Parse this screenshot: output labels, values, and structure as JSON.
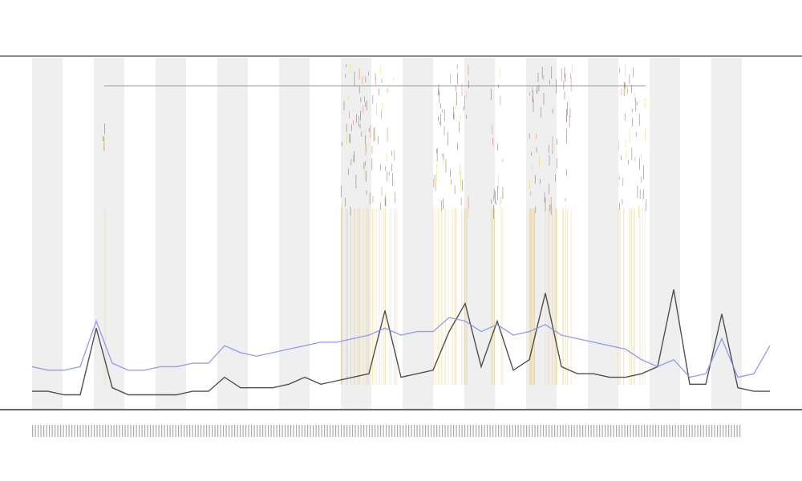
{
  "chart_data": {
    "type": "line",
    "ylim": [
      0,
      100
    ],
    "series": [
      {
        "color": "#333333",
        "values": [
          5,
          5,
          4,
          4,
          23,
          6,
          4,
          4,
          4,
          4,
          5,
          5,
          9,
          6,
          6,
          6,
          7,
          9,
          7,
          8,
          9,
          10,
          28,
          9,
          10,
          11,
          22,
          30,
          12,
          25,
          11,
          14,
          33,
          12,
          10,
          10,
          9,
          9,
          10,
          12,
          34,
          7,
          7,
          27,
          6,
          5,
          5
        ]
      },
      {
        "color": "#8a8ef0",
        "values": [
          12,
          11,
          11,
          12,
          25,
          13,
          11,
          11,
          12,
          12,
          13,
          13,
          18,
          16,
          15,
          16,
          17,
          18,
          19,
          19,
          20,
          21,
          23,
          21,
          22,
          22,
          26,
          25,
          22,
          24,
          21,
          22,
          24,
          21,
          20,
          19,
          18,
          17,
          14,
          12,
          14,
          9,
          10,
          20,
          9,
          10,
          18
        ]
      }
    ]
  }
}
